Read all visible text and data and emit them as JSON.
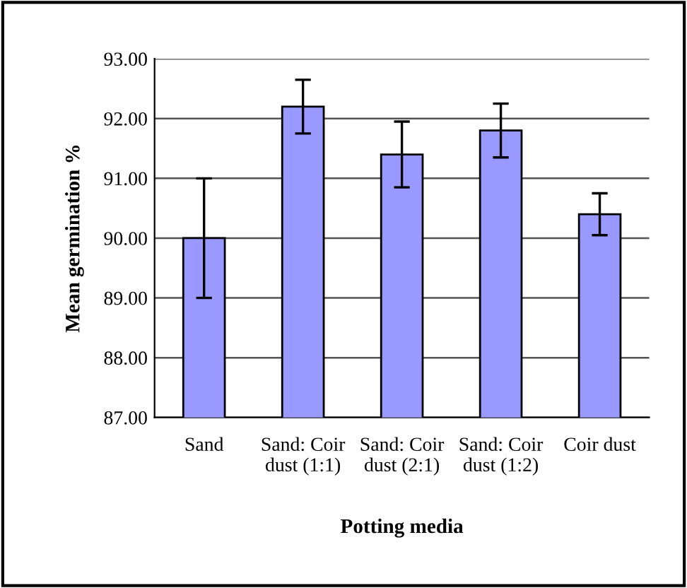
{
  "chart_data": {
    "type": "bar",
    "categories": [
      "Sand",
      "Sand: Coir dust (1:1)",
      "Sand: Coir dust (2:1)",
      "Sand: Coir dust (1:2)",
      "Coir dust"
    ],
    "values": [
      90.0,
      92.2,
      91.4,
      91.8,
      90.4
    ],
    "errors": [
      1.0,
      0.45,
      0.55,
      0.45,
      0.35
    ],
    "color": "#9999ff",
    "xlabel": "Potting media",
    "ylabel": "Mean germination %",
    "ylim": [
      87,
      93
    ],
    "yticks": [
      {
        "value": 87,
        "label": "87.00"
      },
      {
        "value": 88,
        "label": "88.00"
      },
      {
        "value": 89,
        "label": "89.00"
      },
      {
        "value": 90,
        "label": "90.00"
      },
      {
        "value": 91,
        "label": "91.00"
      },
      {
        "value": 92,
        "label": "92.00"
      },
      {
        "value": 93,
        "label": "93.00"
      }
    ],
    "grid": "y"
  }
}
